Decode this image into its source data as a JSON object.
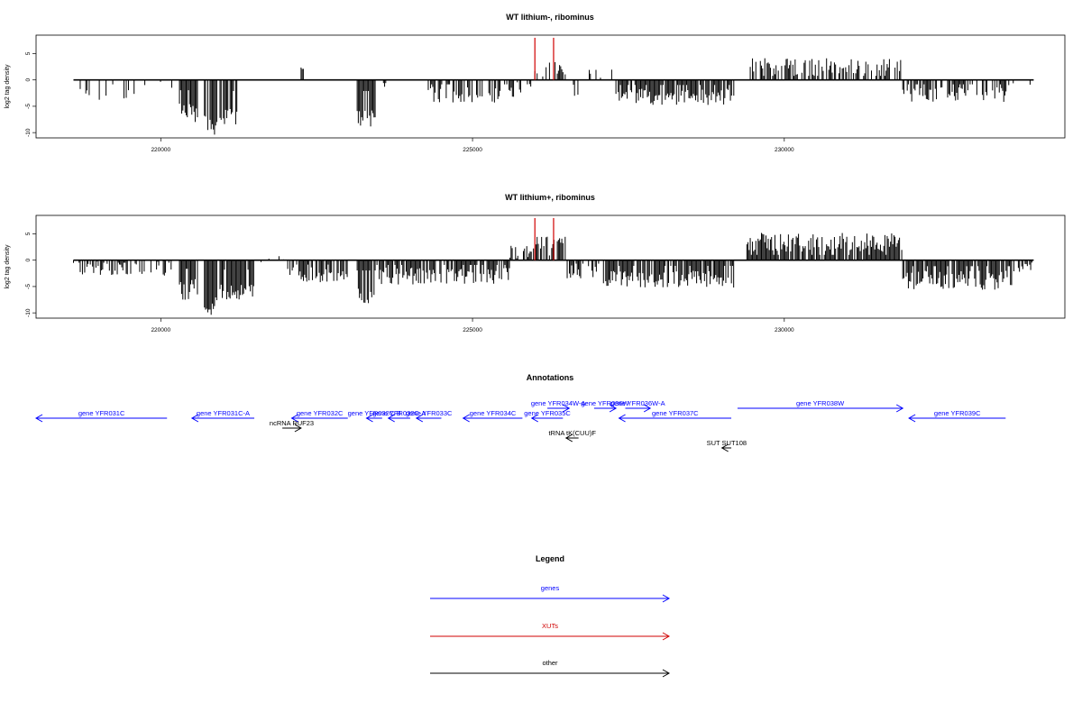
{
  "chart_data": [
    {
      "type": "bar",
      "title": "WT lithium-, ribominus",
      "ylabel": "log2 tag density",
      "xlim": [
        218000,
        234500
      ],
      "ylim": [
        -11,
        8.5
      ],
      "xticks": [
        220000,
        225000,
        230000
      ],
      "yticks": [
        -10,
        -5,
        0,
        5
      ],
      "highlight_color": "#d00000",
      "highlight_x": [
        226000,
        226300
      ],
      "highlight_height": 8,
      "profile": [
        {
          "from": 218600,
          "to": 219600,
          "base": -2.8,
          "var": 1.4,
          "density": 0.25
        },
        {
          "from": 219600,
          "to": 220200,
          "base": -1.2,
          "var": 0.8,
          "density": 0.15
        },
        {
          "from": 220300,
          "to": 220600,
          "base": -6.5,
          "var": 2.0,
          "density": 0.9
        },
        {
          "from": 220700,
          "to": 220900,
          "base": -8.5,
          "var": 2.0,
          "density": 0.95
        },
        {
          "from": 220950,
          "to": 221250,
          "base": -7.0,
          "var": 1.5,
          "density": 0.9
        },
        {
          "from": 222250,
          "to": 222300,
          "base": 2.2,
          "var": 0.2,
          "density": 1.0
        },
        {
          "from": 223150,
          "to": 223450,
          "base": -7.0,
          "var": 2.0,
          "density": 0.95
        },
        {
          "from": 223500,
          "to": 223700,
          "base": -2.0,
          "var": 1.0,
          "density": 0.5
        },
        {
          "from": 224200,
          "to": 225700,
          "base": -2.8,
          "var": 1.5,
          "density": 0.55
        },
        {
          "from": 225700,
          "to": 226000,
          "base": -1.5,
          "var": 1.2,
          "density": 0.35
        },
        {
          "from": 226000,
          "to": 226500,
          "base": 2.2,
          "var": 1.5,
          "density": 0.55
        },
        {
          "from": 226600,
          "to": 226700,
          "base": -3.0,
          "var": 0.6,
          "density": 0.6
        },
        {
          "from": 226800,
          "to": 227300,
          "base": 0.8,
          "var": 1.2,
          "density": 0.35
        },
        {
          "from": 227300,
          "to": 229200,
          "base": -3.2,
          "var": 1.6,
          "density": 0.85
        },
        {
          "from": 229400,
          "to": 231900,
          "base": 2.6,
          "var": 1.6,
          "density": 0.6
        },
        {
          "from": 231900,
          "to": 233600,
          "base": -2.8,
          "var": 1.4,
          "density": 0.65
        },
        {
          "from": 233600,
          "to": 234000,
          "base": -1.0,
          "var": 1.0,
          "density": 0.3
        }
      ]
    },
    {
      "type": "bar",
      "title": "WT lithium+, ribominus",
      "ylabel": "log2 tag density",
      "xlim": [
        218000,
        234500
      ],
      "ylim": [
        -11,
        8.5
      ],
      "xticks": [
        220000,
        225000,
        230000
      ],
      "yticks": [
        -10,
        -5,
        0,
        5
      ],
      "highlight_color": "#d00000",
      "highlight_x": [
        226000,
        226300
      ],
      "highlight_height": 8,
      "profile": [
        {
          "from": 218600,
          "to": 220200,
          "base": -1.6,
          "var": 1.5,
          "density": 0.55
        },
        {
          "from": 220300,
          "to": 220600,
          "base": -5.5,
          "var": 2.0,
          "density": 0.95
        },
        {
          "from": 220700,
          "to": 220900,
          "base": -8.5,
          "var": 2.0,
          "density": 0.95
        },
        {
          "from": 220950,
          "to": 221500,
          "base": -6.0,
          "var": 1.5,
          "density": 0.9
        },
        {
          "from": 221500,
          "to": 222000,
          "base": 0.8,
          "var": 1.5,
          "density": 0.4
        },
        {
          "from": 222000,
          "to": 223000,
          "base": -2.8,
          "var": 1.5,
          "density": 0.75
        },
        {
          "from": 223150,
          "to": 223450,
          "base": -6.5,
          "var": 2.0,
          "density": 0.95
        },
        {
          "from": 223450,
          "to": 225600,
          "base": -3.0,
          "var": 1.6,
          "density": 0.8
        },
        {
          "from": 225600,
          "to": 226000,
          "base": 1.6,
          "var": 1.5,
          "density": 0.6
        },
        {
          "from": 226000,
          "to": 226500,
          "base": 3.0,
          "var": 1.5,
          "density": 0.8
        },
        {
          "from": 226500,
          "to": 227100,
          "base": -2.2,
          "var": 1.5,
          "density": 0.6
        },
        {
          "from": 227100,
          "to": 229200,
          "base": -3.6,
          "var": 1.6,
          "density": 0.9
        },
        {
          "from": 229400,
          "to": 231900,
          "base": 3.4,
          "var": 1.8,
          "density": 0.9
        },
        {
          "from": 231900,
          "to": 233700,
          "base": -3.8,
          "var": 1.8,
          "density": 0.9
        },
        {
          "from": 233700,
          "to": 234000,
          "base": -1.5,
          "var": 1.0,
          "density": 0.5
        }
      ]
    }
  ],
  "annotations": {
    "title": "Annotations",
    "xlim": [
      218000,
      234500
    ],
    "features": [
      {
        "label": "gene YFR031C",
        "from": 218000,
        "to": 220100,
        "strand": "-",
        "row": 0,
        "color": "#0000ff"
      },
      {
        "label": "gene YFR031C-A",
        "from": 220500,
        "to": 221500,
        "strand": "-",
        "row": 0,
        "color": "#0000ff"
      },
      {
        "label": "ncRNA RUF23",
        "from": 221950,
        "to": 222250,
        "strand": "+",
        "row": 1,
        "color": "#000000"
      },
      {
        "label": "gene YFR032C",
        "from": 222100,
        "to": 223000,
        "strand": "-",
        "row": 0,
        "color": "#0000ff"
      },
      {
        "label": "gene YFR032C-B",
        "from": 223300,
        "to": 223550,
        "strand": "-",
        "row": 0,
        "color": "#0000ff"
      },
      {
        "label": "gene YFR032C-A",
        "from": 223650,
        "to": 224000,
        "strand": "-",
        "row": 0,
        "color": "#0000ff"
      },
      {
        "label": "gene YFR033C",
        "from": 224100,
        "to": 224500,
        "strand": "-",
        "row": 0,
        "color": "#0000ff"
      },
      {
        "label": "gene YFR034C",
        "from": 224850,
        "to": 225800,
        "strand": "-",
        "row": 0,
        "color": "#0000ff"
      },
      {
        "label": "gene YFR034W-A",
        "from": 226200,
        "to": 226550,
        "strand": "+",
        "row": 2,
        "color": "#0000ff"
      },
      {
        "label": "gene YFR035C",
        "from": 225950,
        "to": 226450,
        "strand": "-",
        "row": 0,
        "color": "#0000ff"
      },
      {
        "label": "tRNA tK(CUU)F",
        "from": 226500,
        "to": 226700,
        "strand": "-",
        "row": 3,
        "color": "#000000"
      },
      {
        "label": "gene YFR036W",
        "from": 226950,
        "to": 227300,
        "strand": "+",
        "row": 2,
        "color": "#0000ff"
      },
      {
        "label": "gene YFR036W-A",
        "from": 227450,
        "to": 227850,
        "strand": "+",
        "row": 2,
        "color": "#0000ff"
      },
      {
        "label": "gene YFR037C",
        "from": 227350,
        "to": 229150,
        "strand": "-",
        "row": 0,
        "color": "#0000ff"
      },
      {
        "label": "gene YFR038W",
        "from": 229250,
        "to": 231900,
        "strand": "+",
        "row": 2,
        "color": "#0000ff"
      },
      {
        "label": "SUT SUT108",
        "from": 229000,
        "to": 229150,
        "strand": "-",
        "row": 4,
        "color": "#000000"
      },
      {
        "label": "gene YFR039C",
        "from": 232000,
        "to": 233550,
        "strand": "-",
        "row": 0,
        "color": "#0000ff"
      }
    ]
  },
  "legend": {
    "title": "Legend",
    "items": [
      {
        "label": "genes",
        "color": "#0000ff"
      },
      {
        "label": "XUTs",
        "color": "#d00000"
      },
      {
        "label": "other",
        "color": "#000000"
      }
    ]
  }
}
